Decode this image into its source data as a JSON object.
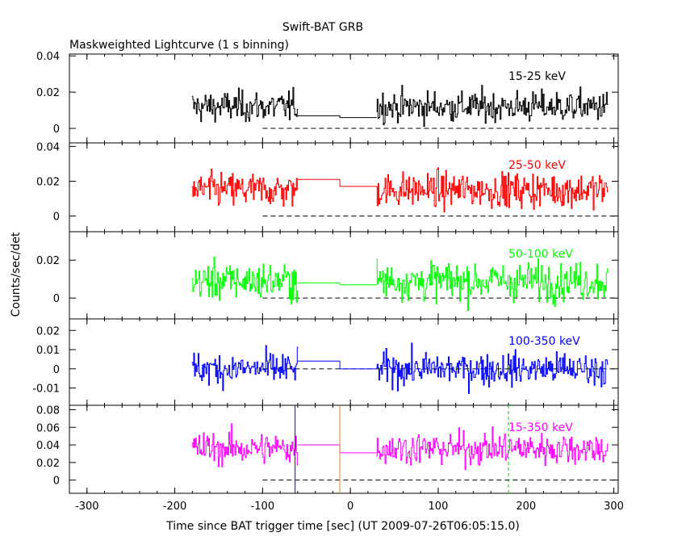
{
  "chart_data": {
    "type": "line",
    "title": "Swift-BAT GRB",
    "subtitle": "Maskweighted Lightcurve (1 s binning)",
    "xlabel": "Time since BAT trigger time [sec] (UT 2009-07-26T06:05:15.0)",
    "ylabel": "Counts/sec/det",
    "xlim": [
      -320,
      305
    ],
    "x_ticks": [
      -300,
      -200,
      -100,
      0,
      100,
      200,
      300
    ],
    "data_gap": [
      -60,
      30
    ],
    "panels": [
      {
        "band": "15-25 keV",
        "color": "#000000",
        "ylim": [
          -0.008,
          0.041
        ],
        "y_ticks": [
          0,
          0.02,
          0.04
        ],
        "y_tick_labels": [
          "0",
          "0.02",
          "0.04"
        ],
        "mean_pre": 0.012,
        "mean_post": 0.012,
        "noise": 0.006,
        "gap_levels": [
          0.007,
          0.006
        ]
      },
      {
        "band": "25-50 keV",
        "color": "#ff0000",
        "ylim": [
          -0.009,
          0.042
        ],
        "y_ticks": [
          0,
          0.02,
          0.04
        ],
        "y_tick_labels": [
          "0",
          "0.02",
          "0.04"
        ],
        "mean_pre": 0.015,
        "mean_post": 0.015,
        "noise": 0.007,
        "gap_levels": [
          0.021,
          0.017
        ]
      },
      {
        "band": "50-100 keV",
        "color": "#00ff00",
        "ylim": [
          -0.011,
          0.035
        ],
        "y_ticks": [
          0,
          0.02
        ],
        "y_tick_labels": [
          "0",
          "0.02"
        ],
        "mean_pre": 0.009,
        "mean_post": 0.009,
        "noise": 0.007,
        "gap_levels": [
          0.008,
          0.007
        ]
      },
      {
        "band": "100-350 keV",
        "color": "#0000ff",
        "ylim": [
          -0.019,
          0.026
        ],
        "y_ticks": [
          -0.01,
          0,
          0.01,
          0.02
        ],
        "y_tick_labels": [
          "-0.01",
          "0",
          "0.01",
          "0.02"
        ],
        "mean_pre": 0.0,
        "mean_post": 0.0,
        "noise": 0.006,
        "gap_levels": [
          0.004,
          0.0
        ]
      },
      {
        "band": "15-350 keV",
        "color": "#ff00ff",
        "ylim": [
          -0.015,
          0.085
        ],
        "y_ticks": [
          0,
          0.02,
          0.04,
          0.06,
          0.08
        ],
        "y_tick_labels": [
          "0",
          "0.02",
          "0.04",
          "0.06",
          "0.08"
        ],
        "mean_pre": 0.036,
        "mean_post": 0.036,
        "noise": 0.013,
        "gap_levels": [
          0.04,
          0.031
        ]
      }
    ],
    "marker_lines": [
      {
        "x": -63,
        "color": "#0000ff"
      },
      {
        "x": -12,
        "color": "#ff8000"
      },
      {
        "x": 180,
        "color": "#00cc00",
        "dashed": true
      }
    ],
    "zero_line": {
      "x_start": -100,
      "dashed": true
    }
  }
}
